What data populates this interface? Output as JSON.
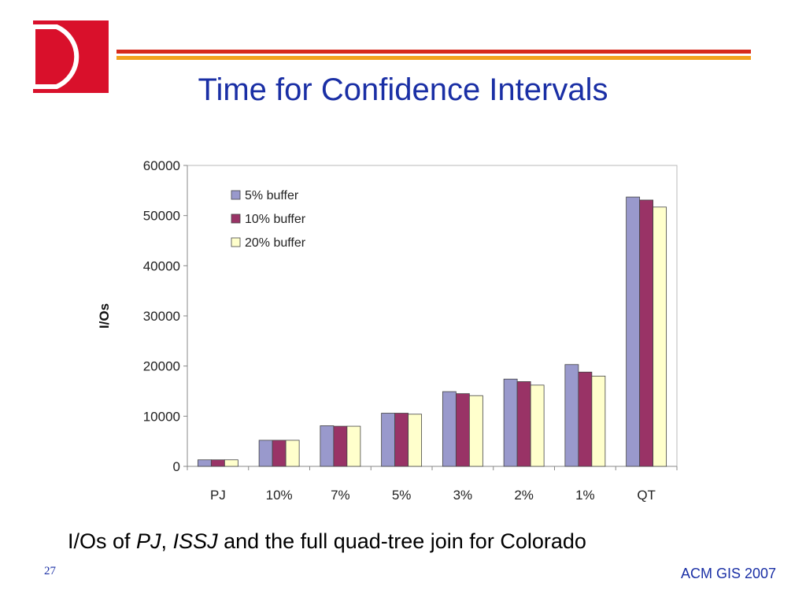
{
  "slide": {
    "title": "Time for Confidence Intervals",
    "caption": {
      "part1": "I/Os of ",
      "em1": "PJ",
      "part2": ", ",
      "em2": "ISSJ",
      "part3": " and the full quad-tree join for Colorado"
    },
    "slide_number": "27",
    "footer": "ACM GIS 2007"
  },
  "colors": {
    "title": "#1a2fa5",
    "logo": "#d9102b",
    "rule_red": "#d62a1b",
    "rule_orange": "#f2a21d"
  },
  "chart_data": {
    "type": "bar",
    "title": "",
    "xlabel": "",
    "ylabel": "I/Os",
    "ylim": [
      0,
      60000
    ],
    "yticks": [
      0,
      10000,
      20000,
      30000,
      40000,
      50000,
      60000
    ],
    "grid": false,
    "legend_position": "top-left",
    "categories": [
      "PJ",
      "10%",
      "7%",
      "5%",
      "3%",
      "2%",
      "1%",
      "QT"
    ],
    "series": [
      {
        "name": "5% buffer",
        "color": "#9999cc",
        "values": [
          1300,
          5200,
          8100,
          10600,
          14900,
          17400,
          20300,
          53700
        ]
      },
      {
        "name": "10% buffer",
        "color": "#993366",
        "values": [
          1300,
          5200,
          8000,
          10600,
          14500,
          16900,
          18800,
          53100
        ]
      },
      {
        "name": "20% buffer",
        "color": "#ffffcc",
        "values": [
          1300,
          5200,
          8000,
          10400,
          14100,
          16200,
          18000,
          51700
        ]
      }
    ]
  }
}
